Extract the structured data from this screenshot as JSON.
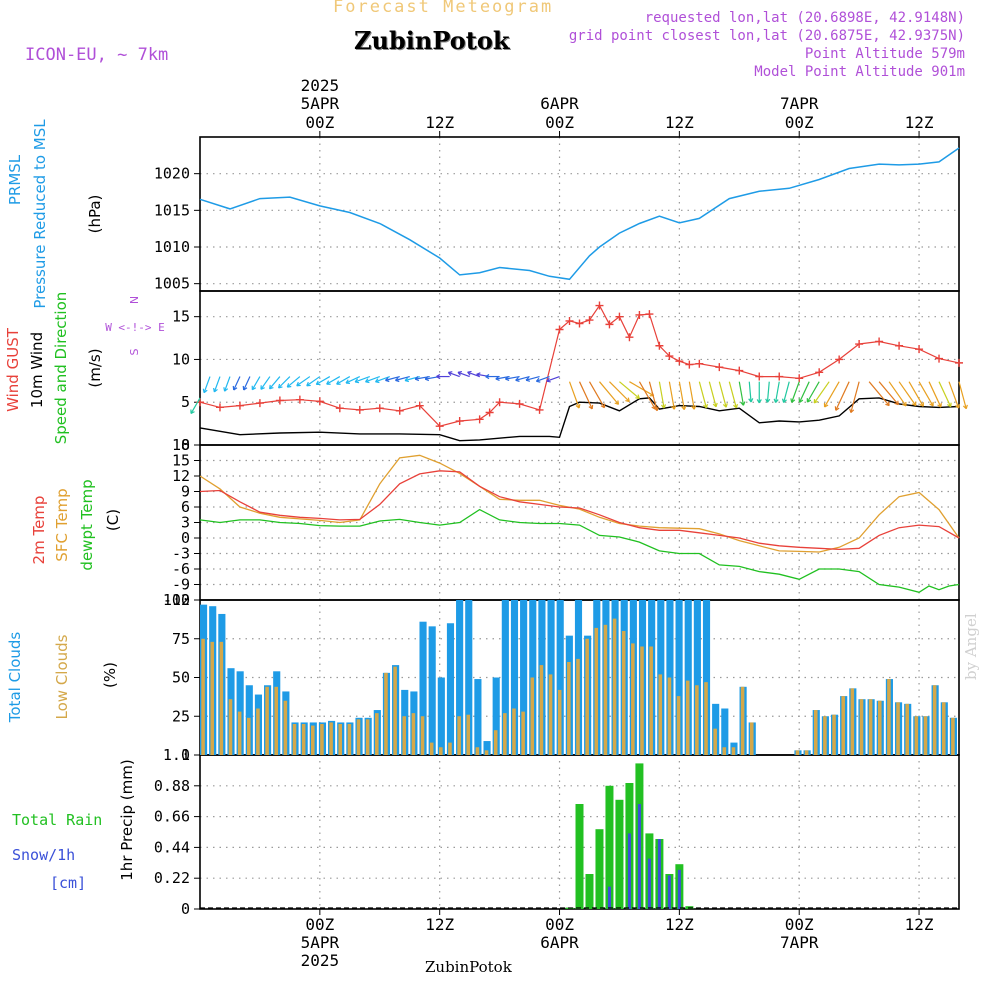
{
  "header": {
    "supertitle": "Forecast Meteogram",
    "location": "ZubinPotok",
    "model": "ICON-EU, ~ 7km",
    "requested": "requested lon,lat (20.6898E, 42.9148N)",
    "closest": "grid point closest lon,lat (20.6875E, 42.9375N)",
    "point_altitude": "Point Altitude 579m",
    "model_altitude": "Model Point Altitude 901m",
    "footer_location": "ZubinPotok",
    "watermark": "by Angel"
  },
  "time_axis": {
    "top_year": "2025",
    "ticks": [
      {
        "hour": 12,
        "label": "00Z",
        "date": "5APR",
        "year": "2025"
      },
      {
        "hour": 24,
        "label": "12Z"
      },
      {
        "hour": 36,
        "label": "00Z",
        "date": "6APR"
      },
      {
        "hour": 48,
        "label": "12Z"
      },
      {
        "hour": 60,
        "label": "00Z",
        "date": "7APR"
      },
      {
        "hour": 72,
        "label": "12Z"
      }
    ]
  },
  "panel_labels": {
    "pressure": {
      "name": "PRMSL",
      "desc": "Pressure Reduced to MSL",
      "unit": "(hPa)"
    },
    "wind": {
      "gust": "Wind GUST",
      "wind10": "10m Wind",
      "speed_dir": "Speed and Direction",
      "unit": "(m/s)",
      "compass": "W <-!-> E",
      "north": "N",
      "south": "S"
    },
    "temp": {
      "t2m": "2m Temp",
      "sfc": "SFC Temp",
      "dewpt": "dewpt Temp",
      "unit": "(C)"
    },
    "clouds": {
      "total": "Total Clouds",
      "low": "Low Clouds",
      "unit": "(%)"
    },
    "precip": {
      "total_rain": "Total  Rain",
      "snow": "Snow/1h",
      "cm": "[cm]",
      "axis": "1hr Precip (mm)"
    }
  },
  "colors": {
    "pressure": "#1e9be6",
    "gust": "#e8413a",
    "wind10": "#000000",
    "t2m": "#e8413a",
    "sfc": "#e0a030",
    "dewpt": "#20c020",
    "total_clouds": "#1e9be6",
    "low_clouds": "#d4a84a",
    "rain": "#22c022",
    "snow": "#3a50d8",
    "purple": "#b050d8"
  },
  "chart_data": {
    "type": "line",
    "x_units": "hours from 4APR 12Z",
    "x_range": [
      0,
      76
    ],
    "pressure": {
      "ylim": [
        1004,
        1025
      ],
      "yticks": [
        1005,
        1010,
        1015,
        1020
      ],
      "x": [
        0,
        3,
        6,
        9,
        12,
        15,
        18,
        21,
        24,
        26,
        28,
        30,
        33,
        35,
        37,
        39,
        40,
        42,
        44,
        46,
        48,
        50,
        53,
        56,
        59,
        62,
        65,
        68,
        70,
        72,
        74,
        76
      ],
      "y": [
        1016.5,
        1015.2,
        1016.6,
        1016.8,
        1015.6,
        1014.7,
        1013.2,
        1011.0,
        1008.5,
        1006.2,
        1006.5,
        1007.2,
        1006.8,
        1006.0,
        1005.6,
        1008.8,
        1010.0,
        1011.9,
        1013.2,
        1014.2,
        1013.3,
        1013.9,
        1016.6,
        1017.6,
        1018.0,
        1019.2,
        1020.7,
        1021.3,
        1021.2,
        1021.3,
        1021.6,
        1023.5
      ]
    },
    "wind": {
      "ylim": [
        0,
        18
      ],
      "yticks": [
        5,
        10,
        15
      ],
      "gust_x": [
        0,
        2,
        4,
        6,
        8,
        10,
        12,
        14,
        16,
        18,
        20,
        22,
        24,
        26,
        28,
        29,
        30,
        32,
        34,
        36,
        37,
        38,
        39,
        40,
        41,
        42,
        43,
        44,
        45,
        46,
        47,
        48,
        49,
        50,
        52,
        54,
        56,
        58,
        60,
        62,
        64,
        66,
        68,
        70,
        72,
        74,
        76
      ],
      "gust_y": [
        5.0,
        4.4,
        4.6,
        4.9,
        5.2,
        5.3,
        5.1,
        4.3,
        4.1,
        4.3,
        4.0,
        4.6,
        2.2,
        2.8,
        3.0,
        3.8,
        5.0,
        4.8,
        4.1,
        13.5,
        14.5,
        14.2,
        14.6,
        16.3,
        14.1,
        15.0,
        12.6,
        15.2,
        15.3,
        11.6,
        10.4,
        9.8,
        9.4,
        9.5,
        9.1,
        8.7,
        8.0,
        8.0,
        7.8,
        8.5,
        10.0,
        11.8,
        12.1,
        11.6,
        11.2,
        10.1,
        9.6
      ],
      "wind10_x": [
        0,
        2,
        4,
        8,
        12,
        16,
        20,
        24,
        26,
        28,
        32,
        35,
        36,
        37,
        38,
        40,
        42,
        44,
        45,
        46,
        48,
        50,
        52,
        54,
        56,
        58,
        60,
        62,
        64,
        66,
        68,
        70,
        72,
        74,
        76
      ],
      "wind10_y": [
        2.0,
        1.6,
        1.2,
        1.4,
        1.5,
        1.3,
        1.3,
        1.2,
        0.5,
        0.6,
        1.0,
        1.0,
        0.9,
        4.5,
        5.0,
        4.9,
        4.0,
        5.4,
        5.5,
        4.2,
        4.6,
        4.5,
        4.0,
        4.3,
        2.6,
        2.8,
        2.7,
        2.9,
        3.4,
        5.4,
        5.5,
        4.8,
        4.5,
        4.4,
        4.5
      ],
      "arrows_x": [
        0,
        1,
        2,
        3,
        4,
        5,
        6,
        7,
        8,
        9,
        10,
        11,
        12,
        13,
        14,
        15,
        16,
        17,
        18,
        19,
        20,
        21,
        22,
        23,
        24,
        25,
        26,
        27,
        28,
        29,
        30,
        31,
        32,
        33,
        34,
        35,
        36,
        37,
        38,
        39,
        40,
        41,
        42,
        43,
        44,
        45,
        46,
        47,
        48,
        49,
        50,
        51,
        52,
        53,
        54,
        55,
        56,
        57,
        58,
        59,
        60,
        61,
        62,
        63,
        64,
        65,
        66,
        67,
        68,
        69,
        70,
        71,
        72,
        73,
        74,
        75,
        76
      ],
      "arrows_dir": [
        30,
        20,
        20,
        20,
        25,
        25,
        30,
        35,
        40,
        45,
        50,
        55,
        55,
        60,
        60,
        60,
        65,
        70,
        70,
        70,
        75,
        75,
        75,
        80,
        80,
        90,
        110,
        110,
        110,
        100,
        90,
        80,
        80,
        75,
        75,
        70,
        70,
        340,
        335,
        330,
        320,
        315,
        310,
        300,
        330,
        345,
        350,
        350,
        350,
        350,
        345,
        345,
        345,
        345,
        350,
        355,
        0,
        5,
        10,
        15,
        20,
        25,
        30,
        35,
        30,
        25,
        15,
        320,
        320,
        325,
        325,
        330,
        330,
        335,
        335,
        340,
        345
      ],
      "arrows_speed": [
        2.0,
        1.8,
        1.6,
        1.4,
        1.2,
        1.2,
        1.3,
        1.4,
        1.5,
        1.5,
        1.6,
        1.5,
        1.5,
        1.4,
        1.3,
        1.3,
        1.3,
        1.4,
        1.3,
        1.3,
        1.2,
        1.2,
        1.3,
        1.2,
        1.2,
        0.8,
        0.5,
        0.6,
        0.7,
        0.8,
        1.0,
        1.0,
        1.1,
        1.1,
        1.0,
        1.0,
        0.9,
        4.5,
        5.0,
        5.0,
        4.9,
        4.5,
        4.0,
        4.5,
        5.4,
        5.0,
        4.2,
        4.5,
        4.6,
        4.5,
        4.3,
        4.0,
        4.1,
        4.3,
        3.5,
        2.6,
        2.8,
        2.7,
        2.8,
        2.9,
        3.0,
        3.2,
        3.4,
        4.0,
        4.8,
        5.4,
        5.5,
        5.3,
        5.0,
        4.9,
        4.8,
        4.6,
        4.5,
        4.5,
        4.4,
        4.5,
        4.5
      ]
    },
    "temp": {
      "ylim": [
        -12,
        18
      ],
      "yticks": [
        -12,
        -9,
        -6,
        -3,
        0,
        3,
        6,
        9,
        12,
        15,
        18
      ],
      "t2m_x": [
        0,
        2,
        4,
        6,
        8,
        10,
        12,
        14,
        16,
        18,
        20,
        22,
        24,
        26,
        28,
        30,
        32,
        34,
        36,
        38,
        40,
        42,
        44,
        46,
        48,
        50,
        52,
        54,
        56,
        58,
        60,
        62,
        64,
        66,
        68,
        70,
        72,
        74,
        76
      ],
      "t2m_y": [
        9.0,
        9.2,
        7.0,
        5.0,
        4.4,
        4.0,
        3.8,
        3.5,
        3.6,
        6.5,
        10.5,
        12.4,
        13.0,
        12.8,
        10.0,
        8.0,
        7.0,
        6.5,
        6.0,
        5.8,
        4.5,
        3.0,
        2.0,
        1.5,
        1.5,
        1.0,
        0.5,
        0.0,
        -1.0,
        -1.5,
        -1.8,
        -2.0,
        -2.2,
        -2.0,
        0.5,
        2.0,
        2.5,
        2.2,
        0.0
      ],
      "sfc_x": [
        0,
        2,
        4,
        6,
        8,
        10,
        12,
        14,
        16,
        18,
        20,
        22,
        24,
        26,
        28,
        30,
        32,
        34,
        36,
        38,
        40,
        42,
        44,
        46,
        48,
        50,
        52,
        54,
        56,
        58,
        60,
        62,
        64,
        66,
        68,
        70,
        72,
        74,
        76
      ],
      "sfc_y": [
        12.0,
        9.5,
        6.0,
        4.8,
        4.0,
        3.7,
        3.4,
        3.0,
        3.5,
        10.5,
        15.5,
        16.0,
        14.5,
        12.5,
        10.0,
        7.5,
        7.3,
        7.3,
        6.3,
        5.6,
        4.0,
        2.8,
        2.3,
        2.0,
        1.9,
        1.8,
        0.8,
        -0.5,
        -1.5,
        -2.5,
        -2.6,
        -2.7,
        -1.8,
        0.0,
        4.5,
        8.0,
        8.8,
        5.5,
        0.0
      ],
      "dewpt_x": [
        0,
        2,
        4,
        6,
        8,
        10,
        12,
        14,
        16,
        18,
        20,
        22,
        24,
        26,
        28,
        30,
        32,
        34,
        36,
        38,
        40,
        42,
        44,
        46,
        48,
        50,
        52,
        54,
        56,
        58,
        60,
        62,
        64,
        66,
        68,
        70,
        72,
        73,
        74,
        75,
        76
      ],
      "dewpt_y": [
        3.5,
        3.0,
        3.5,
        3.5,
        3.0,
        2.8,
        2.4,
        2.3,
        2.3,
        3.3,
        3.6,
        3.0,
        2.5,
        3.0,
        5.5,
        3.5,
        3.0,
        2.8,
        2.8,
        2.5,
        0.5,
        0.2,
        -0.8,
        -2.5,
        -3.0,
        -3.0,
        -5.2,
        -5.5,
        -6.5,
        -7.0,
        -8.0,
        -6.0,
        -6.0,
        -6.5,
        -9.0,
        -9.5,
        -10.5,
        -9.3,
        -10.0,
        -9.3,
        -9.0
      ]
    },
    "clouds": {
      "ylim": [
        0,
        100
      ],
      "yticks": [
        0,
        25,
        50,
        75,
        100
      ],
      "total": [
        97,
        96,
        91,
        56,
        54,
        45,
        39,
        45,
        54,
        41,
        21,
        21,
        21,
        21,
        22,
        21,
        21,
        24,
        24,
        29,
        53,
        58,
        42,
        41,
        86,
        83,
        50,
        85,
        100,
        100,
        49,
        9,
        50,
        100,
        100,
        100,
        100,
        100,
        100,
        100,
        77,
        100,
        77,
        100,
        100,
        100,
        100,
        100,
        100,
        100,
        100,
        100,
        100,
        100,
        100,
        100,
        33,
        30,
        8,
        44,
        21,
        0,
        0,
        0,
        0,
        3,
        3,
        29,
        25,
        26,
        38,
        43,
        36,
        36,
        35,
        49,
        34,
        33,
        25,
        25,
        45,
        34,
        24
      ],
      "low": [
        75,
        73,
        73,
        36,
        28,
        24,
        30,
        44,
        44,
        35,
        20,
        20,
        19,
        20,
        21,
        20,
        20,
        23,
        23,
        27,
        53,
        57,
        25,
        27,
        25,
        8,
        5,
        8,
        25,
        26,
        5,
        3,
        16,
        27,
        30,
        28,
        50,
        58,
        52,
        42,
        60,
        62,
        75,
        82,
        84,
        88,
        80,
        72,
        70,
        70,
        52,
        50,
        38,
        48,
        45,
        47,
        17,
        5,
        5,
        44,
        21,
        0,
        0,
        0,
        0,
        3,
        3,
        29,
        25,
        26,
        38,
        43,
        36,
        36,
        35,
        49,
        34,
        33,
        25,
        25,
        45,
        34,
        24
      ]
    },
    "precip": {
      "ylim": [
        0,
        1.1
      ],
      "yticks": [
        0,
        0.22,
        0.44,
        0.66,
        0.88,
        1.1
      ],
      "x": [
        37,
        38,
        39,
        40,
        41,
        42,
        43,
        44,
        45,
        46,
        47,
        48,
        49
      ],
      "rain": [
        0.01,
        0.75,
        0.25,
        0.57,
        0.88,
        0.78,
        0.9,
        1.04,
        0.54,
        0.5,
        0.25,
        0.32,
        0.02
      ],
      "snow": [
        0,
        0,
        0,
        0,
        0.16,
        0,
        0.54,
        0.75,
        0.36,
        0.5,
        0.24,
        0.28,
        0
      ]
    }
  }
}
